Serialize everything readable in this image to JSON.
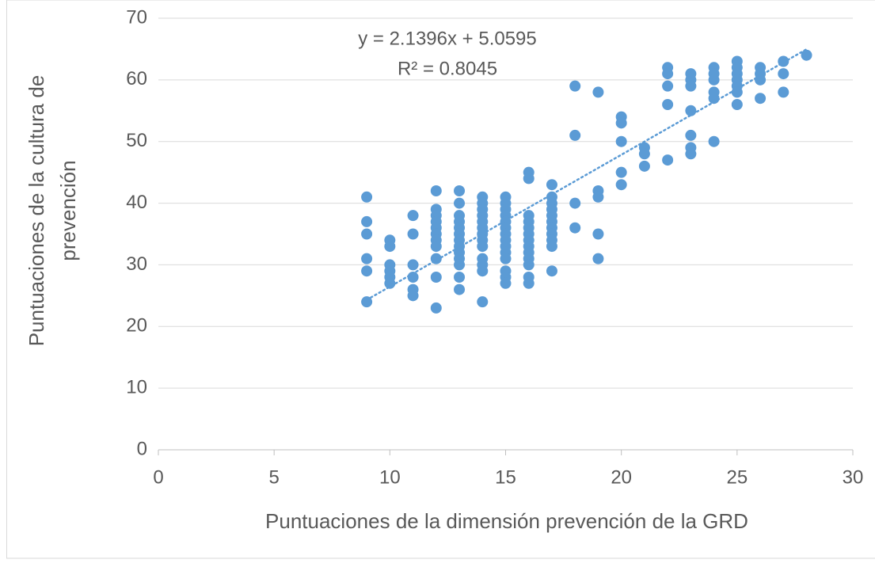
{
  "chart_data": {
    "type": "scatter",
    "xlabel": "Puntuaciones de la dimensión prevención de la GRD",
    "ylabel": [
      "Puntuaciones de la cultura de",
      "prevención"
    ],
    "xlim": [
      0,
      30
    ],
    "xticks": [
      0,
      5,
      10,
      15,
      20,
      25,
      30
    ],
    "ylim": [
      0,
      70
    ],
    "yticks": [
      0,
      10,
      20,
      30,
      40,
      50,
      60,
      70
    ],
    "grid": true,
    "color": "#5b9bd5",
    "trendline": {
      "slope": 2.1396,
      "intercept": 5.0595,
      "equation": "y = 2.1396x + 5.0595",
      "r2": "R² = 0.8045",
      "color": "#5b9bd5"
    },
    "x": [
      9,
      9,
      9,
      9,
      9,
      9,
      10,
      10,
      10,
      10,
      10,
      10,
      11,
      11,
      11,
      11,
      11,
      11,
      12,
      12,
      12,
      12,
      12,
      12,
      12,
      12,
      12,
      12,
      12,
      13,
      13,
      13,
      13,
      13,
      13,
      13,
      13,
      13,
      13,
      13,
      13,
      13,
      14,
      14,
      14,
      14,
      14,
      14,
      14,
      14,
      14,
      14,
      14,
      14,
      14,
      15,
      15,
      15,
      15,
      15,
      15,
      15,
      15,
      15,
      15,
      15,
      15,
      15,
      15,
      16,
      16,
      16,
      16,
      16,
      16,
      16,
      16,
      16,
      16,
      16,
      16,
      16,
      17,
      17,
      17,
      17,
      17,
      17,
      17,
      17,
      17,
      17,
      17,
      18,
      18,
      18,
      18,
      19,
      19,
      19,
      19,
      19,
      20,
      20,
      20,
      20,
      20,
      21,
      21,
      21,
      22,
      22,
      22,
      22,
      22,
      23,
      23,
      23,
      23,
      23,
      23,
      23,
      24,
      24,
      24,
      24,
      24,
      24,
      25,
      25,
      25,
      25,
      25,
      25,
      25,
      26,
      26,
      26,
      26,
      27,
      27,
      27,
      28
    ],
    "y": [
      41,
      37,
      35,
      31,
      29,
      24,
      34,
      33,
      30,
      29,
      28,
      27,
      38,
      35,
      30,
      28,
      26,
      25,
      42,
      39,
      38,
      37,
      36,
      35,
      34,
      33,
      31,
      28,
      23,
      42,
      40,
      38,
      37,
      36,
      35,
      34,
      33,
      32,
      31,
      30,
      28,
      26,
      41,
      40,
      39,
      38,
      37,
      36,
      35,
      34,
      33,
      31,
      30,
      29,
      24,
      41,
      40,
      39,
      38,
      37,
      36,
      35,
      34,
      33,
      32,
      31,
      29,
      28,
      27,
      45,
      44,
      38,
      37,
      36,
      35,
      34,
      33,
      32,
      31,
      30,
      28,
      27,
      43,
      41,
      40,
      39,
      38,
      37,
      36,
      35,
      34,
      33,
      29,
      59,
      51,
      40,
      36,
      58,
      42,
      41,
      35,
      31,
      54,
      53,
      50,
      45,
      43,
      49,
      48,
      46,
      62,
      61,
      59,
      56,
      47,
      61,
      60,
      59,
      55,
      51,
      49,
      48,
      62,
      61,
      60,
      58,
      57,
      50,
      63,
      62,
      61,
      60,
      59,
      58,
      56,
      62,
      61,
      60,
      57,
      63,
      61,
      58,
      64
    ]
  }
}
